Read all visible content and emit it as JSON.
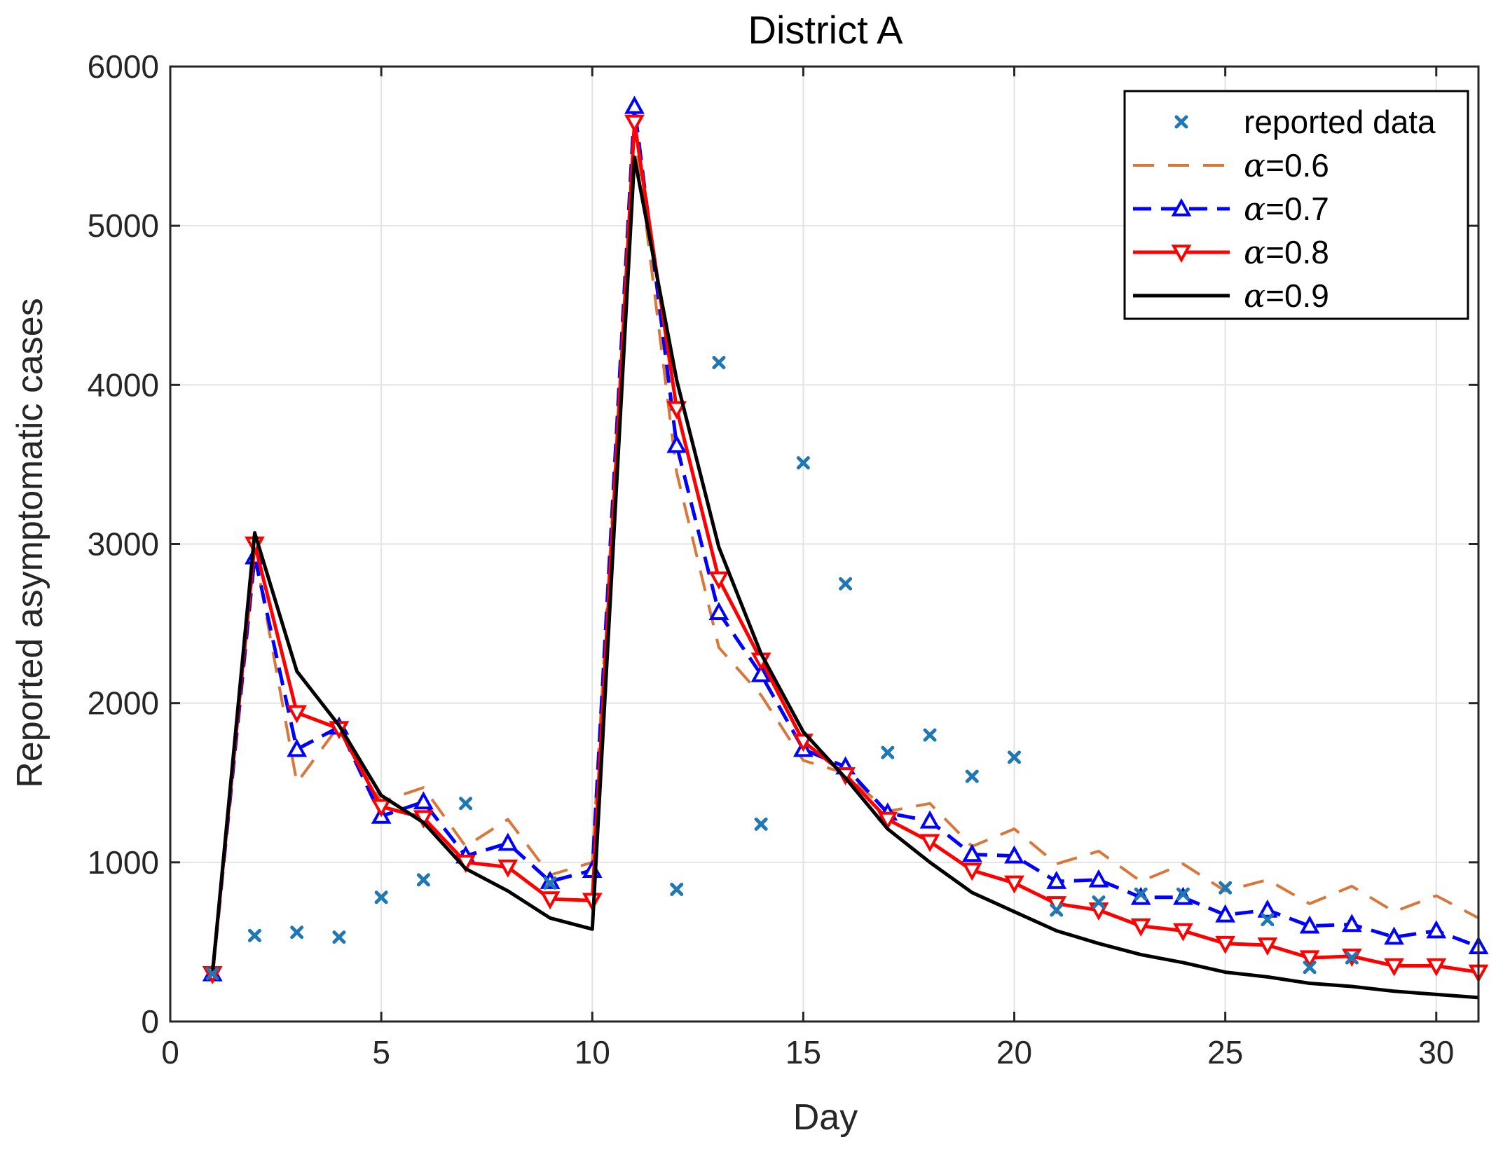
{
  "chart_data": {
    "type": "line",
    "title": "District A",
    "xlabel": "Day",
    "ylabel": "Reported asymptomatic cases",
    "xlim": [
      0,
      31
    ],
    "ylim": [
      0,
      6000
    ],
    "xticks": [
      0,
      5,
      10,
      15,
      20,
      25,
      30
    ],
    "yticks": [
      0,
      1000,
      2000,
      3000,
      4000,
      5000,
      6000
    ],
    "grid": true,
    "legend_position": "top-right",
    "colors": {
      "reported": "#1f77b4",
      "a06": "#d9773b",
      "a07": "#0000ff",
      "a08": "#ff0000",
      "a09": "#000000",
      "grid": "#e3e3e3",
      "axis": "#262626"
    },
    "x": [
      1,
      2,
      3,
      4,
      5,
      6,
      7,
      8,
      9,
      10,
      11,
      12,
      13,
      14,
      15,
      16,
      17,
      18,
      19,
      20,
      21,
      22,
      23,
      24,
      25,
      26,
      27,
      28,
      29,
      30,
      31
    ],
    "series": [
      {
        "name": "reported data",
        "legend_label": "reported data",
        "style": "markers-x",
        "values": [
          300,
          540,
          560,
          530,
          780,
          890,
          1370,
          null,
          870,
          null,
          null,
          830,
          4140,
          1240,
          3510,
          2750,
          1690,
          1800,
          1540,
          1660,
          700,
          750,
          800,
          800,
          840,
          640,
          340,
          400,
          null,
          null,
          null
        ]
      },
      {
        "name": "α=0.6",
        "legend_symbol": "α",
        "legend_value": "=0.6",
        "style": "dashed",
        "values": [
          300,
          2950,
          1500,
          1860,
          1380,
          1470,
          1100,
          1270,
          920,
          1000,
          5600,
          3450,
          2350,
          2050,
          1640,
          1560,
          1320,
          1370,
          1100,
          1210,
          990,
          1070,
          880,
          990,
          820,
          890,
          740,
          850,
          690,
          790,
          650
        ]
      },
      {
        "name": "α=0.7",
        "legend_symbol": "α",
        "legend_value": "=0.7",
        "style": "dash-triangle",
        "values": [
          300,
          2920,
          1710,
          1850,
          1290,
          1380,
          1040,
          1120,
          880,
          950,
          5750,
          3620,
          2570,
          2180,
          1710,
          1600,
          1310,
          1260,
          1050,
          1040,
          880,
          890,
          780,
          780,
          670,
          700,
          600,
          610,
          530,
          570,
          470
        ]
      },
      {
        "name": "α=0.8",
        "legend_symbol": "α",
        "legend_value": "=0.8",
        "style": "solid-triangle-down",
        "values": [
          300,
          3000,
          1940,
          1840,
          1350,
          1280,
          1000,
          970,
          770,
          760,
          5650,
          3850,
          2780,
          2270,
          1760,
          1550,
          1270,
          1130,
          950,
          870,
          740,
          700,
          600,
          570,
          490,
          480,
          400,
          410,
          350,
          350,
          310
        ]
      },
      {
        "name": "α=0.9",
        "legend_symbol": "α",
        "legend_value": "=0.9",
        "style": "solid",
        "values": [
          300,
          3070,
          2200,
          1860,
          1420,
          1250,
          960,
          820,
          650,
          580,
          5430,
          4030,
          2980,
          2310,
          1820,
          1530,
          1210,
          1000,
          810,
          690,
          570,
          490,
          420,
          370,
          310,
          280,
          240,
          220,
          190,
          170,
          150
        ]
      }
    ]
  }
}
